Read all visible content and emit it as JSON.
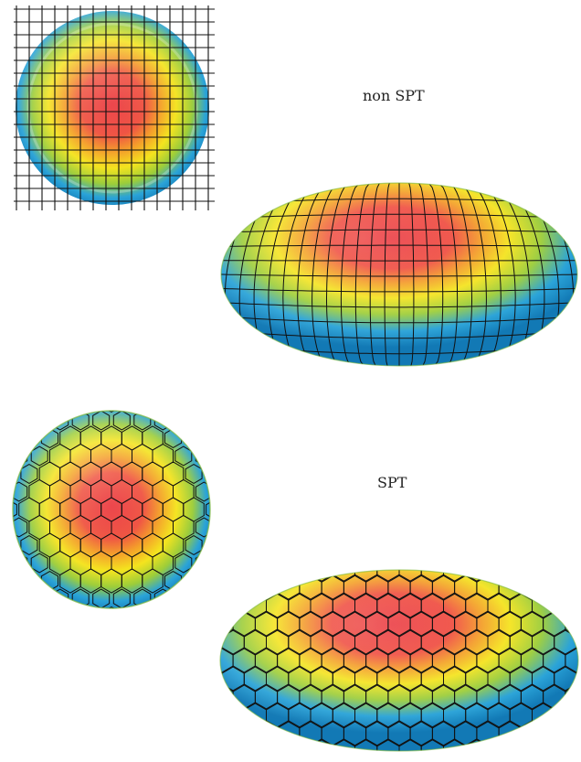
{
  "labels": {
    "non_spt": "non SPT",
    "spt": "SPT"
  },
  "colors": {
    "hot": "#e8222a",
    "warm_orange": "#f39a1c",
    "warm_yellow": "#f4e318",
    "mid_green": "#9ccd3a",
    "cool_blue": "#2aa3d8",
    "deep_blue": "#1279b5",
    "grid_line": "#111111"
  },
  "panels": [
    {
      "name": "non-spt-flat",
      "grid": "square"
    },
    {
      "name": "non-spt-ellipsoid",
      "grid": "square"
    },
    {
      "name": "spt-flat",
      "grid": "hexagonal"
    },
    {
      "name": "spt-ellipsoid",
      "grid": "hexagonal"
    }
  ]
}
